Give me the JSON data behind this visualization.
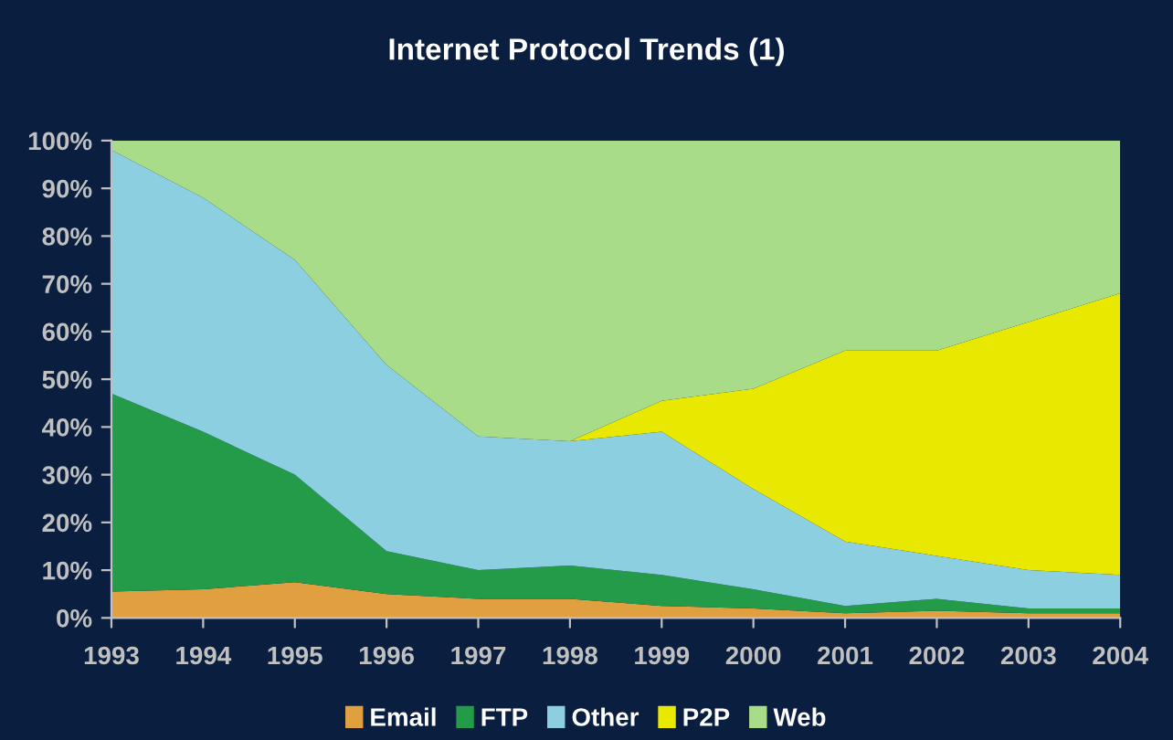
{
  "chart_data": {
    "type": "area",
    "title": "Internet Protocol Trends (1)",
    "stacked": true,
    "categories": [
      "1993",
      "1994",
      "1995",
      "1996",
      "1997",
      "1998",
      "1999",
      "2000",
      "2001",
      "2002",
      "2003",
      "2004"
    ],
    "series": [
      {
        "name": "Email",
        "color": "#e0a040",
        "values": [
          5.5,
          6,
          7.5,
          5,
          4,
          4,
          2.5,
          2,
          1,
          1.5,
          1,
          1
        ]
      },
      {
        "name": "FTP",
        "color": "#239b48",
        "values": [
          41.5,
          33,
          22.5,
          9,
          6,
          7,
          6.5,
          4,
          1.5,
          2.5,
          1,
          1
        ]
      },
      {
        "name": "Other",
        "color": "#8ccfe0",
        "values": [
          51,
          49,
          45,
          39,
          28,
          26,
          30,
          21,
          13.5,
          9,
          8,
          7
        ]
      },
      {
        "name": "P2P",
        "color": "#e8e800",
        "values": [
          0,
          0,
          0,
          0,
          0,
          0,
          6.5,
          21,
          40,
          43,
          52,
          59
        ]
      },
      {
        "name": "Web",
        "color": "#a8dc88",
        "values": [
          2,
          12,
          25,
          47,
          62,
          63,
          54.5,
          52,
          44,
          44,
          38,
          32
        ]
      }
    ],
    "ylim": [
      0,
      100
    ],
    "yticks": [
      {
        "value": 0,
        "label": "0%"
      },
      {
        "value": 10,
        "label": "10%"
      },
      {
        "value": 20,
        "label": "20%"
      },
      {
        "value": 30,
        "label": "30%"
      },
      {
        "value": 40,
        "label": "40%"
      },
      {
        "value": 50,
        "label": "50%"
      },
      {
        "value": 60,
        "label": "60%"
      },
      {
        "value": 70,
        "label": "70%"
      },
      {
        "value": 80,
        "label": "80%"
      },
      {
        "value": 90,
        "label": "90%"
      },
      {
        "value": 100,
        "label": "100%"
      }
    ],
    "legend": "bottom",
    "grid": false
  }
}
